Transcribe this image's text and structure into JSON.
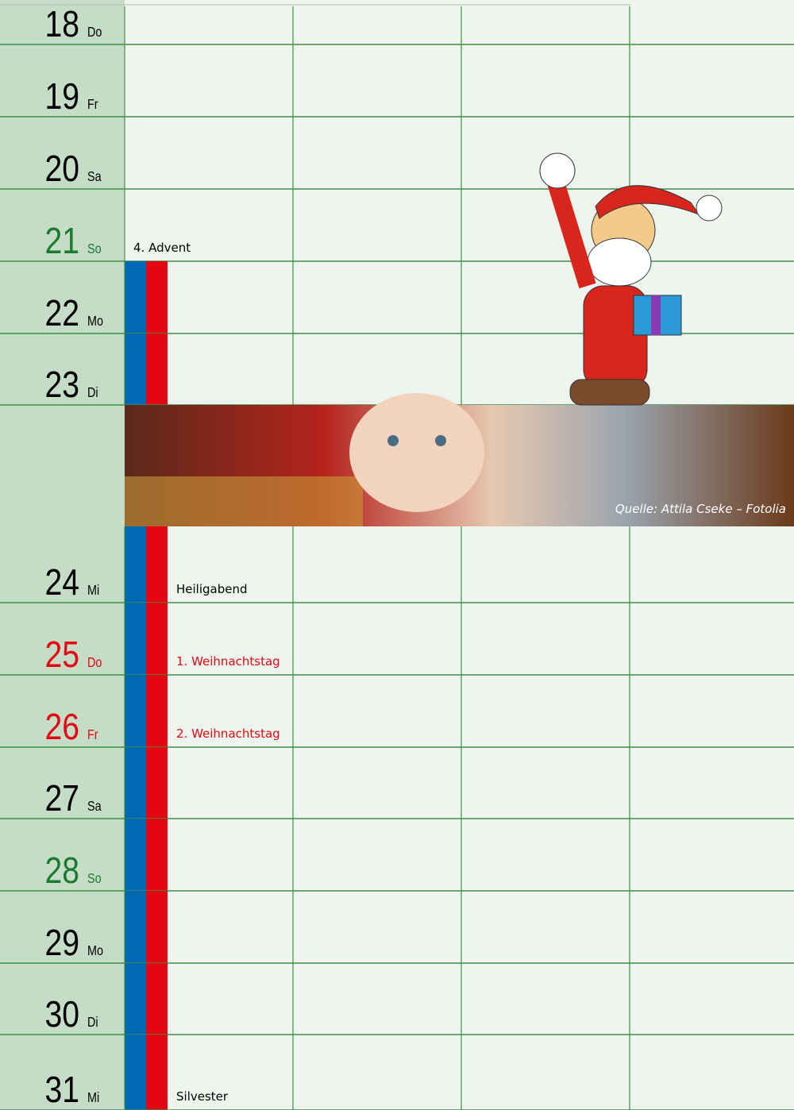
{
  "calendar": {
    "days_before": [
      {
        "day": "18",
        "weekday": "Do",
        "color": "#000000"
      },
      {
        "day": "19",
        "weekday": "Fr",
        "color": "#000000"
      },
      {
        "day": "20",
        "weekday": "Sa",
        "color": "#000000"
      },
      {
        "day": "21",
        "weekday": "So",
        "color": "#1a7a2e",
        "note": "4. Advent",
        "note_color": "#000000"
      },
      {
        "day": "22",
        "weekday": "Mo",
        "color": "#000000"
      },
      {
        "day": "23",
        "weekday": "Di",
        "color": "#000000"
      }
    ],
    "image_caption": "Quelle: Attila Cseke – Fotolia",
    "days_after": [
      {
        "day": "24",
        "weekday": "Mi",
        "color": "#000000",
        "note": "Heiligabend",
        "note_color": "#000000"
      },
      {
        "day": "25",
        "weekday": "Do",
        "color": "#e30613",
        "note": "1. Weihnachtstag",
        "note_color": "#e30613"
      },
      {
        "day": "26",
        "weekday": "Fr",
        "color": "#e30613",
        "note": "2. Weihnachtstag",
        "note_color": "#e30613"
      },
      {
        "day": "27",
        "weekday": "Sa",
        "color": "#000000"
      },
      {
        "day": "28",
        "weekday": "So",
        "color": "#1a7a2e"
      },
      {
        "day": "29",
        "weekday": "Mo",
        "color": "#000000"
      },
      {
        "day": "30",
        "weekday": "Di",
        "color": "#000000"
      },
      {
        "day": "31",
        "weekday": "Mi",
        "color": "#000000",
        "note": "Silvester",
        "note_color": "#000000"
      }
    ]
  }
}
